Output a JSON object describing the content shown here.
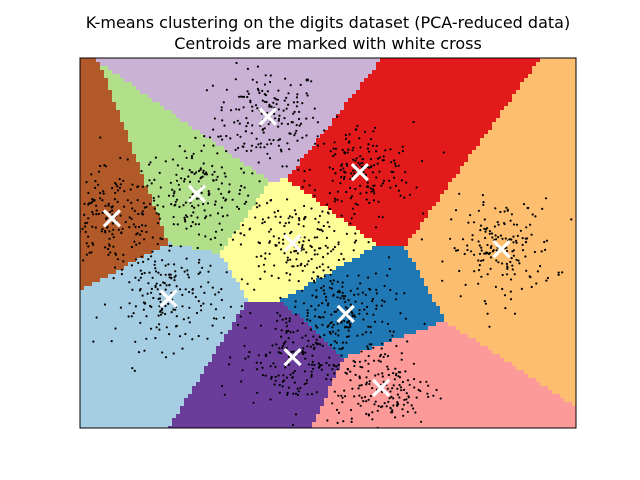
{
  "chart_data": {
    "type": "scatter",
    "title": "K-means clustering on the digits dataset (PCA-reduced data)",
    "subtitle": "Centroids are marked with white cross",
    "xlabel": "",
    "ylabel": "",
    "xlim": [
      -6.5,
      7.5
    ],
    "ylim": [
      -6.0,
      6.0
    ],
    "ticks_visible": false,
    "grid": false,
    "background": "voronoi-regions",
    "point_color": "#000000",
    "centroid_marker": "x",
    "centroid_color": "#ffffff",
    "centroids": [
      {
        "x": -1.2,
        "y": 4.1,
        "color": "#cab2d6"
      },
      {
        "x": -3.2,
        "y": 1.6,
        "color": "#b2df8a"
      },
      {
        "x": -5.6,
        "y": 0.8,
        "color": "#b15928"
      },
      {
        "x": 1.4,
        "y": 2.3,
        "color": "#e31a1c"
      },
      {
        "x": -0.5,
        "y": 0.0,
        "color": "#ffff99"
      },
      {
        "x": 5.4,
        "y": -0.2,
        "color": "#fdbf6f"
      },
      {
        "x": -4.0,
        "y": -1.8,
        "color": "#a6cee3"
      },
      {
        "x": 1.0,
        "y": -2.3,
        "color": "#1f78b4"
      },
      {
        "x": -0.5,
        "y": -3.7,
        "color": "#6a3d9a"
      },
      {
        "x": 2.0,
        "y": -4.7,
        "color": "#fb9a99"
      }
    ]
  }
}
